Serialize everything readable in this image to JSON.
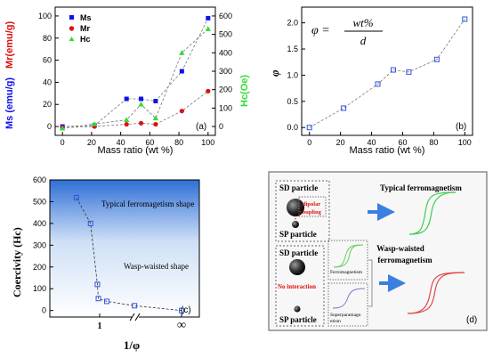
{
  "panels": {
    "a": {
      "tag": "(a)",
      "type": "line",
      "xlabel": "Mass ratio (wt %)",
      "ylabel_left_1": "Ms (emu/g)",
      "ylabel_left_2": "Mr(emu/g)",
      "ylabel_right": "Hc(Oe)",
      "xticks": [
        0,
        20,
        40,
        60,
        80,
        100
      ],
      "yticks_left": [
        0,
        20,
        40,
        60,
        80,
        100
      ],
      "yticks_right": [
        0,
        100,
        200,
        300,
        400,
        500,
        600
      ],
      "xlim": [
        -5,
        105
      ],
      "ylim_left": [
        -8,
        108
      ],
      "ylim_right": [
        -48,
        648
      ],
      "legend_position": "top-left",
      "series": [
        {
          "name": "Ms",
          "axis": "left",
          "marker": "square",
          "color": "#1010ee",
          "x": [
            0,
            22,
            44,
            54,
            64,
            82,
            100
          ],
          "y": [
            0,
            1,
            25,
            25,
            23,
            50,
            98
          ]
        },
        {
          "name": "Mr",
          "axis": "left",
          "marker": "circle",
          "color": "#dd1010",
          "x": [
            0,
            22,
            44,
            54,
            64,
            82,
            100
          ],
          "y": [
            -1,
            0,
            2,
            3,
            2,
            14,
            32
          ]
        },
        {
          "name": "Hc",
          "axis": "right",
          "marker": "triangle",
          "color": "#33dd33",
          "x": [
            0,
            22,
            44,
            54,
            64,
            82,
            100
          ],
          "y": [
            -10,
            14,
            36,
            120,
            45,
            400,
            530
          ]
        }
      ]
    },
    "b": {
      "tag": "(b)",
      "type": "line",
      "xlabel": "Mass ratio (wt %)",
      "ylabel": "φ",
      "formula_lhs": "φ =",
      "formula_num": "wt%",
      "formula_den": "d",
      "xticks": [
        0,
        20,
        40,
        60,
        80,
        100
      ],
      "yticks": [
        "0.0",
        "0.5",
        "1.0",
        "1.5",
        "2.0"
      ],
      "xlim": [
        -5,
        105
      ],
      "ylim": [
        -0.15,
        2.3
      ],
      "series": [
        {
          "marker": "square-open",
          "color": "#2f55e0",
          "x": [
            0,
            22,
            44,
            54,
            64,
            82,
            100
          ],
          "y": [
            0,
            0.37,
            0.83,
            1.1,
            1.06,
            1.3,
            2.07
          ]
        }
      ]
    },
    "c": {
      "tag": "(c)",
      "type": "line",
      "xlabel": "1/φ",
      "ylabel": "Coercivity (Hc)",
      "xticks": [
        "1",
        "∞"
      ],
      "yticks": [
        0,
        100,
        200,
        300,
        400,
        500,
        600
      ],
      "ylim": [
        -30,
        600
      ],
      "region_top_label": "Typical ferromagetism shape",
      "region_bottom_label": "Wasp-waisted shape",
      "series": [
        {
          "marker": "square-open",
          "color": "#2f55e0",
          "x": [
            0.48,
            0.75,
            0.93,
            0.96,
            1.25,
            3.0,
            "∞"
          ],
          "y": [
            518,
            400,
            120,
            55,
            42,
            22,
            0
          ]
        }
      ]
    },
    "d": {
      "tag": "(d)",
      "sd_particle": "SD particle",
      "sp_particle": "SP particle",
      "dipolar_line1": "dipolar",
      "dipolar_line2": "coupling",
      "no_interaction": "No interaction",
      "typical_label": "Typical ferromagnetism",
      "wasp_label_1": "Wasp-waisted",
      "wasp_label_2": "ferromagnetism",
      "ferro_small": "Ferromagnetism",
      "super_small_1": "Superparamagn",
      "super_small_2": "etism"
    }
  },
  "colors": {
    "ms": "#1010ee",
    "mr": "#dd1010",
    "hc": "#33dd33",
    "open_square": "#2f55e0",
    "arrow": "#3b7fe0",
    "red_loop": "#e04848",
    "green_loop": "#44cc55"
  }
}
